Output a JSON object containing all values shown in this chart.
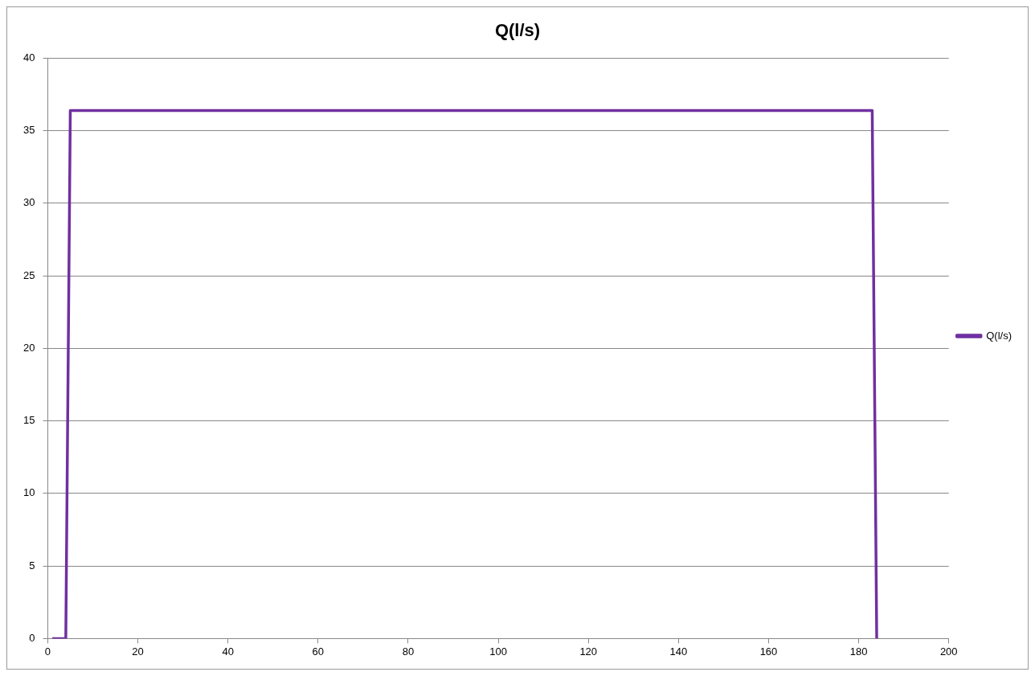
{
  "chart_data": {
    "type": "line",
    "title": "Q(l/s)",
    "x": [
      1,
      4,
      5,
      183,
      184
    ],
    "series": [
      {
        "name": "Q(l/s)",
        "color": "#7030a0",
        "values": [
          0,
          0,
          36.4,
          36.4,
          0
        ]
      }
    ],
    "xlim": [
      0,
      200
    ],
    "xticks": [
      0,
      20,
      40,
      60,
      80,
      100,
      120,
      140,
      160,
      180,
      200
    ],
    "ylim": [
      0,
      40
    ],
    "yticks": [
      0,
      5,
      10,
      15,
      20,
      25,
      30,
      35,
      40
    ],
    "grid": "y",
    "legend": "right",
    "marker": "none"
  }
}
